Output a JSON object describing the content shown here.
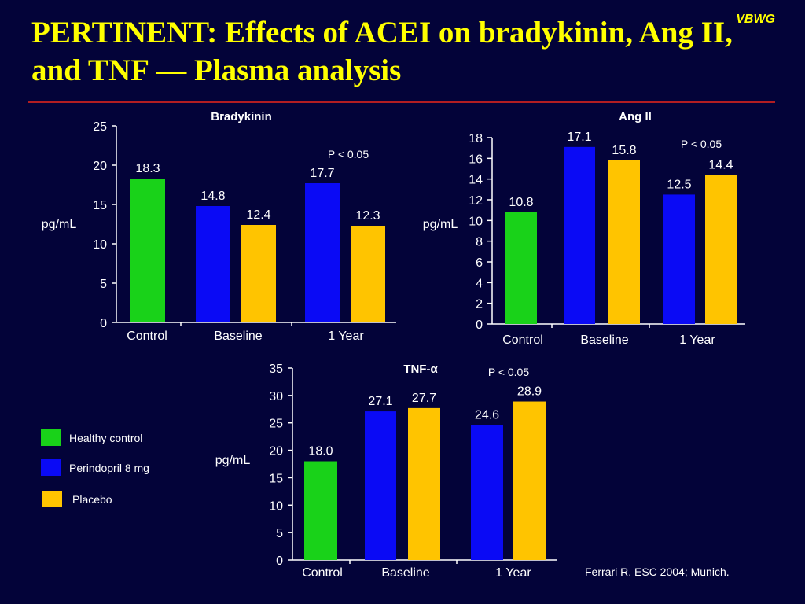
{
  "title": "PERTINENT: Effects of ACEI on bradykinin, Ang II, and TNF — Plasma analysis",
  "brand": "VBWG",
  "source": "Ferrari R. ESC 2004; Munich.",
  "legend": [
    {
      "label": "Healthy control",
      "color": "#19d219"
    },
    {
      "label": "Perindopril 8 mg",
      "color": "#0a0af5"
    },
    {
      "label": "Placebo",
      "color": "#ffc400"
    }
  ],
  "colors": {
    "background": "#030339",
    "title": "#ffff00",
    "rule": "#b21d22"
  },
  "chart_data": [
    {
      "type": "bar",
      "title": "Bradykinin",
      "ylabel": "pg/mL",
      "ylim": [
        0,
        25
      ],
      "yticks": [
        0,
        5,
        10,
        15,
        20,
        25
      ],
      "groups": [
        "Control",
        "Baseline",
        "1 Year"
      ],
      "annotation": "P < 0.05",
      "bars": [
        {
          "group": "Control",
          "series": "Healthy control",
          "value": 18.3,
          "label": "18.3"
        },
        {
          "group": "Baseline",
          "series": "Perindopril 8 mg",
          "value": 14.8,
          "label": "14.8"
        },
        {
          "group": "Baseline",
          "series": "Placebo",
          "value": 12.4,
          "label": "12.4"
        },
        {
          "group": "1 Year",
          "series": "Perindopril 8 mg",
          "value": 17.7,
          "label": "17.7"
        },
        {
          "group": "1 Year",
          "series": "Placebo",
          "value": 12.3,
          "label": "12.3"
        }
      ]
    },
    {
      "type": "bar",
      "title": "Ang II",
      "ylabel": "pg/mL",
      "ylim": [
        0,
        18
      ],
      "yticks": [
        0,
        2,
        4,
        6,
        8,
        10,
        12,
        14,
        16,
        18
      ],
      "groups": [
        "Control",
        "Baseline",
        "1 Year"
      ],
      "annotation": "P < 0.05",
      "bars": [
        {
          "group": "Control",
          "series": "Healthy control",
          "value": 10.8,
          "label": "10.8"
        },
        {
          "group": "Baseline",
          "series": "Perindopril 8 mg",
          "value": 17.1,
          "label": "17.1"
        },
        {
          "group": "Baseline",
          "series": "Placebo",
          "value": 15.8,
          "label": "15.8"
        },
        {
          "group": "1 Year",
          "series": "Perindopril 8 mg",
          "value": 12.5,
          "label": "12.5"
        },
        {
          "group": "1 Year",
          "series": "Placebo",
          "value": 14.4,
          "label": "14.4"
        }
      ]
    },
    {
      "type": "bar",
      "title": "TNF-α",
      "ylabel": "pg/mL",
      "ylim": [
        0,
        35
      ],
      "yticks": [
        0,
        5,
        10,
        15,
        20,
        25,
        30,
        35
      ],
      "groups": [
        "Control",
        "Baseline",
        "1 Year"
      ],
      "annotation": "P < 0.05",
      "bars": [
        {
          "group": "Control",
          "series": "Healthy control",
          "value": 18.0,
          "label": "18.0"
        },
        {
          "group": "Baseline",
          "series": "Perindopril 8 mg",
          "value": 27.1,
          "label": "27.1"
        },
        {
          "group": "Baseline",
          "series": "Placebo",
          "value": 27.7,
          "label": "27.7"
        },
        {
          "group": "1 Year",
          "series": "Perindopril 8 mg",
          "value": 24.6,
          "label": "24.6"
        },
        {
          "group": "1 Year",
          "series": "Placebo",
          "value": 28.9,
          "label": "28.9"
        }
      ]
    }
  ]
}
